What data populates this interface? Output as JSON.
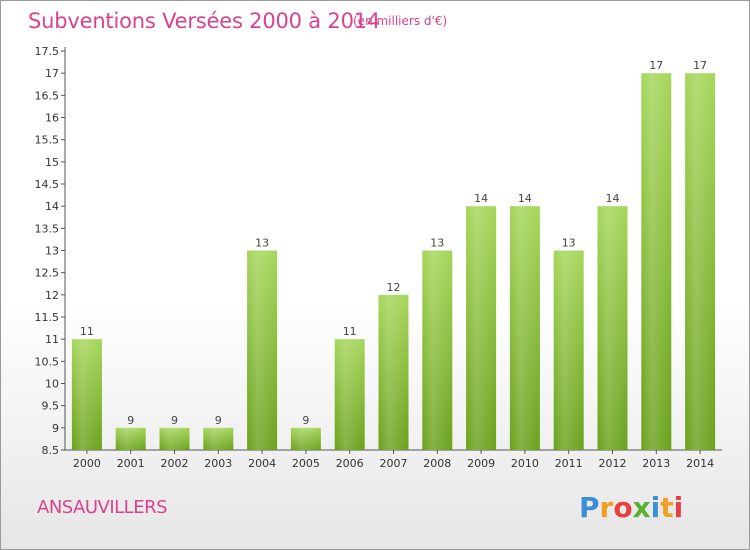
{
  "title": "Subventions Versées 2000 à 2014",
  "subtitle": "(en milliers d'€)",
  "commune": "ANSAUVILLERS",
  "logo": {
    "text": "Proxiti"
  },
  "colors": {
    "title": "#d9428e",
    "bar_light": "#a5d65a",
    "bar_dark": "#6aa11c"
  },
  "chart_data": {
    "type": "bar",
    "title": "Subventions Versées 2000 à 2014",
    "subtitle": "(en milliers d'€)",
    "xlabel": "",
    "ylabel": "",
    "categories": [
      "2000",
      "2001",
      "2002",
      "2003",
      "2004",
      "2005",
      "2006",
      "2007",
      "2008",
      "2009",
      "2010",
      "2011",
      "2012",
      "2013",
      "2014"
    ],
    "values": [
      11,
      9,
      9,
      9,
      13,
      9,
      11,
      12,
      13,
      14,
      14,
      13,
      14,
      17,
      17
    ],
    "ylim": [
      8.5,
      17.5
    ],
    "yticks": [
      8.5,
      9,
      9.5,
      10,
      10.5,
      11,
      11.5,
      12,
      12.5,
      13,
      13.5,
      14,
      14.5,
      15,
      15.5,
      16,
      16.5,
      17,
      17.5
    ],
    "grid": false,
    "legend": "none"
  }
}
